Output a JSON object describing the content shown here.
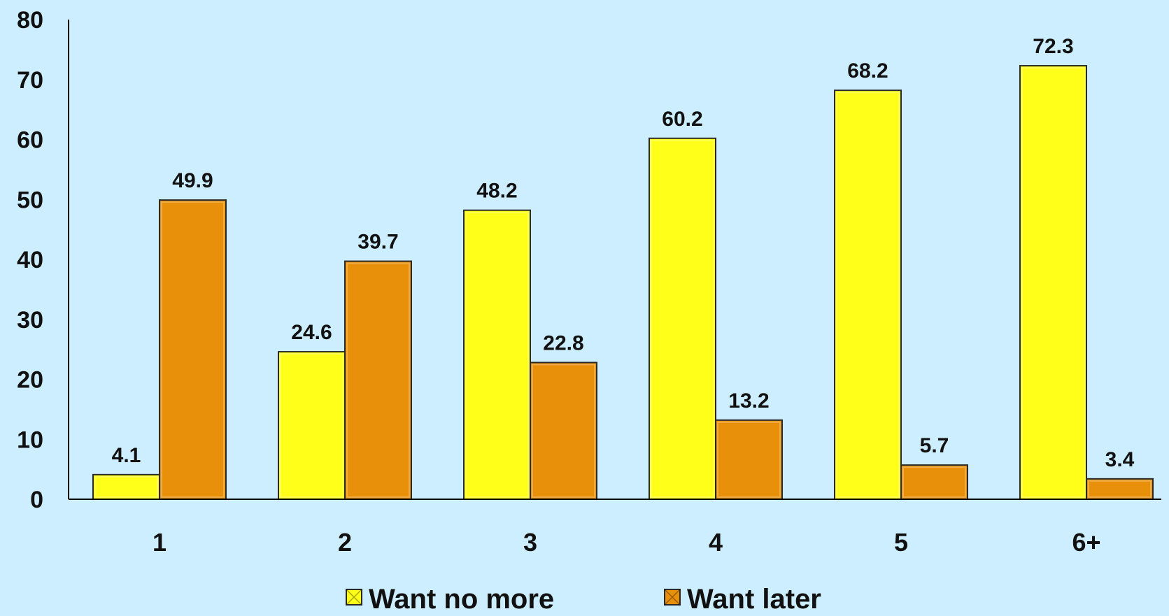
{
  "background_color": "#cdeeff",
  "chart_data": {
    "type": "bar",
    "categories": [
      "1",
      "2",
      "3",
      "4",
      "5",
      "6+"
    ],
    "series": [
      {
        "name": "Want no more",
        "color": "#ffff1a",
        "values": [
          4.1,
          24.6,
          48.2,
          60.2,
          68.2,
          72.3
        ],
        "labels": [
          "4.1",
          "24.6",
          "48.2",
          "60.2",
          "68.2",
          "72.3"
        ]
      },
      {
        "name": "Want later",
        "color": "#e8900a",
        "values": [
          49.9,
          39.7,
          22.8,
          13.2,
          5.7,
          3.4
        ],
        "labels": [
          "49.9",
          "39.7",
          "22.8",
          "13.2",
          "5.7",
          "3.4"
        ]
      }
    ],
    "yticks": [
      "0",
      "10",
      "20",
      "30",
      "40",
      "50",
      "60",
      "70",
      "80"
    ],
    "ylim": [
      0,
      80
    ],
    "title": "",
    "xlabel": "",
    "ylabel": "",
    "grid": false,
    "legend_position": "bottom"
  }
}
